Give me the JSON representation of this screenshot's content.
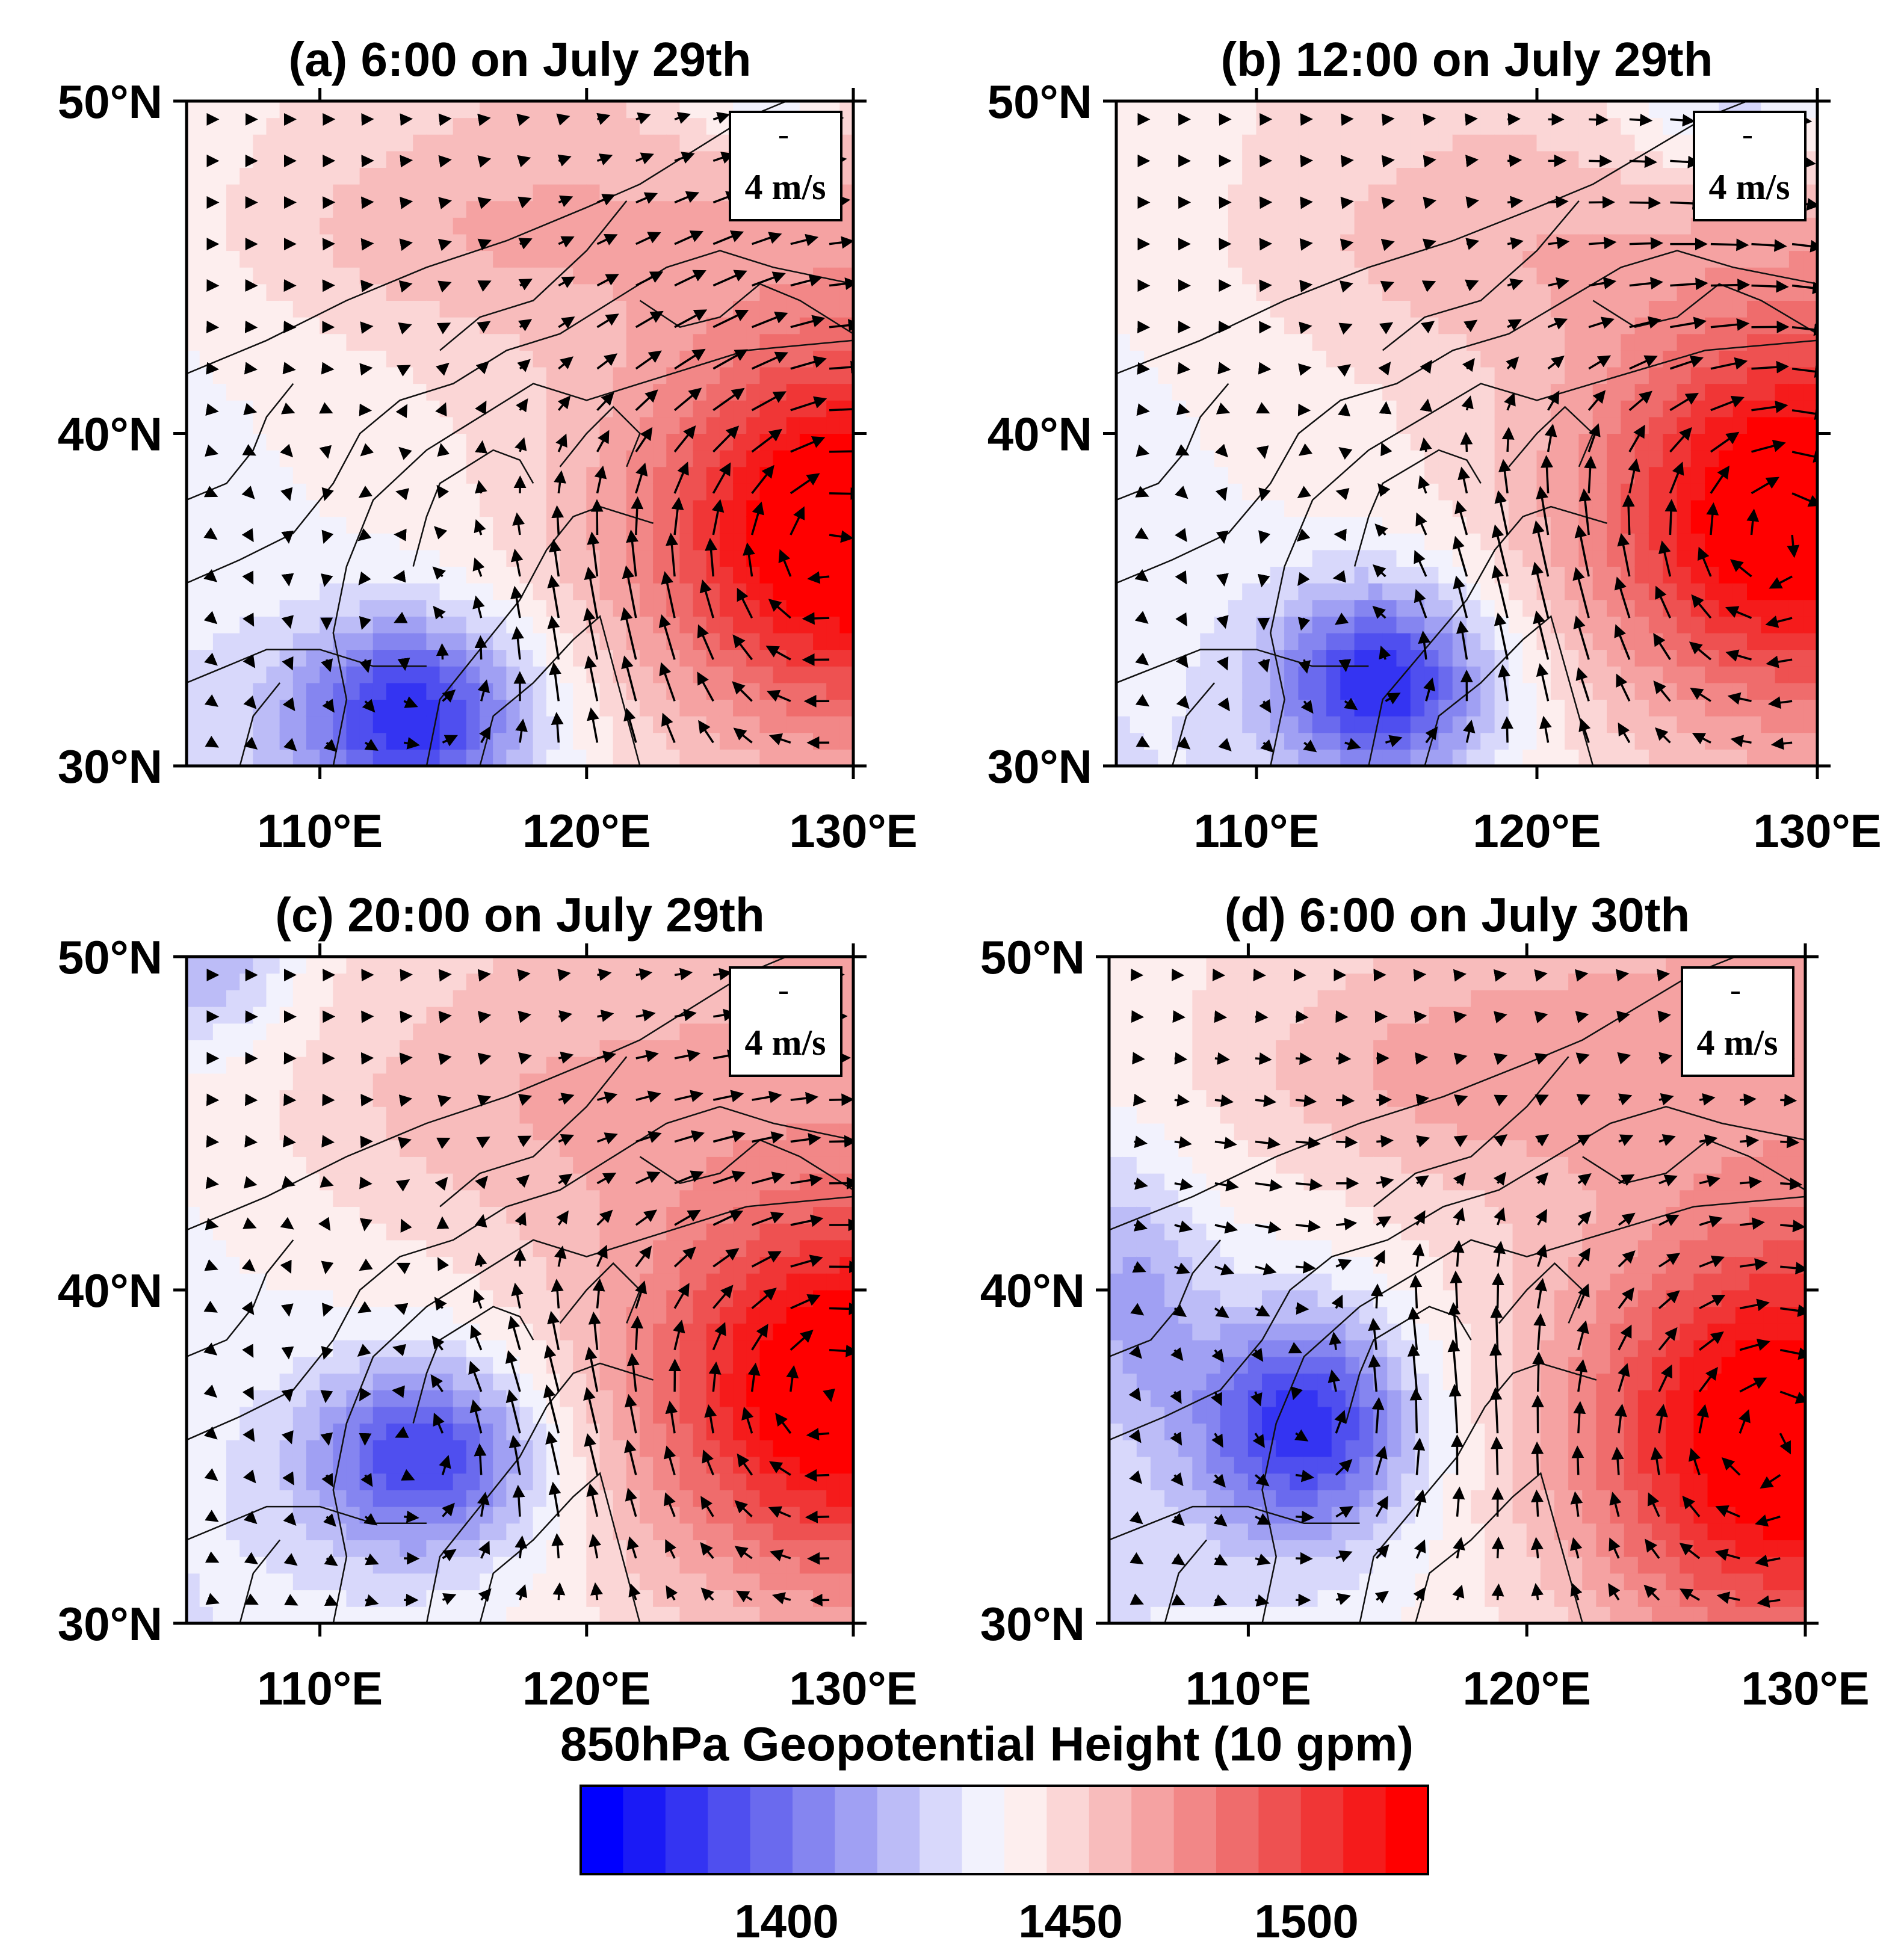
{
  "figure": {
    "colorbar_title": "850hPa Geopotential Height (10 gpm)",
    "colorbar_ticks": [
      {
        "value": 1400,
        "label": "1400"
      },
      {
        "value": 1450,
        "label": "1450"
      },
      {
        "value": 1500,
        "label": "1500"
      }
    ]
  },
  "chart_data": {
    "type": "heatmap",
    "description_variable": "850hPa geopotential height (10 gpm) with wind vectors",
    "colorbar": {
      "min": 1360,
      "max": 1520,
      "levels": 20,
      "colors": [
        "#0000ff",
        "#1a1af6",
        "#3434f2",
        "#4f4fef",
        "#6a6aee",
        "#8585f0",
        "#a0a0f3",
        "#bcbcf7",
        "#d8d8fb",
        "#f2f2fd",
        "#fdeeee",
        "#fbd6d6",
        "#f8bcbc",
        "#f5a2a2",
        "#f28787",
        "#ef6c6c",
        "#ee5151",
        "#f03636",
        "#f51b1b",
        "#ff0000"
      ],
      "ticks": [
        1400,
        1450,
        1500
      ]
    },
    "x_axis": {
      "range": [
        105,
        130
      ],
      "ticks": [
        110,
        120,
        130
      ],
      "tick_labels": [
        "110°E",
        "120°E",
        "130°E"
      ]
    },
    "y_axis": {
      "range": [
        30,
        50
      ],
      "ticks": [
        30,
        40,
        50
      ],
      "tick_labels": [
        "30°N",
        "40°N",
        "50°N"
      ]
    },
    "panels": [
      {
        "id": "a",
        "title": "(a) 6:00 on July 29th",
        "reference_vector": {
          "label": "4 m/s",
          "speed": 4
        },
        "height_features": [
          {
            "kind": "high",
            "lon": 129.5,
            "lat": 37.0,
            "value": 1520,
            "spread_lon": 7.5,
            "spread_lat": 5.5
          },
          {
            "kind": "high",
            "lon": 115.0,
            "lat": 46.0,
            "value": 1462,
            "spread_lon": 9.0,
            "spread_lat": 3.0
          },
          {
            "kind": "low",
            "lon": 113.5,
            "lat": 31.5,
            "value": 1386,
            "spread_lon": 4.5,
            "spread_lat": 3.0
          },
          {
            "kind": "low",
            "lon": 127.0,
            "lat": 50.5,
            "value": 1418,
            "spread_lon": 4.0,
            "spread_lat": 2.0
          }
        ],
        "wind_features": [
          {
            "kind": "anticyclone",
            "lon": 129.0,
            "lat": 36.5,
            "strength": 0.95,
            "radius": 7.0
          },
          {
            "kind": "cyclone",
            "lon": 114.0,
            "lat": 33.0,
            "strength": 0.35,
            "radius": 5.0
          },
          {
            "kind": "jet",
            "lon": 121.0,
            "lat": 33.5,
            "u": -0.25,
            "v": 1.0,
            "strength": 1.0,
            "radius": 3.0
          },
          {
            "kind": "jet",
            "lon": 124.0,
            "lat": 44.0,
            "u": 1.0,
            "v": 0.45,
            "strength": 0.5,
            "radius": 4.0
          }
        ]
      },
      {
        "id": "b",
        "title": "(b) 12:00 on July 29th",
        "reference_vector": {
          "label": "4 m/s",
          "speed": 4
        },
        "height_features": [
          {
            "kind": "high",
            "lon": 129.0,
            "lat": 37.5,
            "value": 1520,
            "spread_lon": 7.0,
            "spread_lat": 5.5
          },
          {
            "kind": "high",
            "lon": 117.0,
            "lat": 45.5,
            "value": 1458,
            "spread_lon": 8.0,
            "spread_lat": 3.0
          },
          {
            "kind": "low",
            "lon": 114.5,
            "lat": 32.5,
            "value": 1384,
            "spread_lon": 4.0,
            "spread_lat": 3.0
          },
          {
            "kind": "low",
            "lon": 127.5,
            "lat": 50.0,
            "value": 1415,
            "spread_lon": 5.0,
            "spread_lat": 2.5
          }
        ],
        "wind_features": [
          {
            "kind": "anticyclone",
            "lon": 128.5,
            "lat": 37.0,
            "strength": 0.95,
            "radius": 7.0
          },
          {
            "kind": "cyclone",
            "lon": 114.5,
            "lat": 33.0,
            "strength": 0.4,
            "radius": 5.0
          },
          {
            "kind": "jet",
            "lon": 120.0,
            "lat": 35.0,
            "u": -0.3,
            "v": 1.0,
            "strength": 1.05,
            "radius": 3.0
          },
          {
            "kind": "jet",
            "lon": 125.0,
            "lat": 46.0,
            "u": 1.0,
            "v": -0.2,
            "strength": 0.6,
            "radius": 4.0
          }
        ]
      },
      {
        "id": "c",
        "title": "(c) 20:00 on July 29th",
        "reference_vector": {
          "label": "4 m/s",
          "speed": 4
        },
        "height_features": [
          {
            "kind": "high",
            "lon": 129.5,
            "lat": 37.0,
            "value": 1518,
            "spread_lon": 7.5,
            "spread_lat": 5.5
          },
          {
            "kind": "high",
            "lon": 117.0,
            "lat": 45.5,
            "value": 1460,
            "spread_lon": 9.0,
            "spread_lat": 3.5
          },
          {
            "kind": "low",
            "lon": 114.0,
            "lat": 35.0,
            "value": 1390,
            "spread_lon": 4.5,
            "spread_lat": 3.0
          },
          {
            "kind": "low",
            "lon": 106.0,
            "lat": 50.0,
            "value": 1420,
            "spread_lon": 3.0,
            "spread_lat": 2.5
          }
        ],
        "wind_features": [
          {
            "kind": "anticyclone",
            "lon": 129.0,
            "lat": 37.0,
            "strength": 0.85,
            "radius": 7.0
          },
          {
            "kind": "cyclone",
            "lon": 114.0,
            "lat": 35.0,
            "strength": 0.35,
            "radius": 5.0
          },
          {
            "kind": "jet",
            "lon": 119.0,
            "lat": 36.0,
            "u": -0.4,
            "v": 1.0,
            "strength": 0.9,
            "radius": 3.0
          },
          {
            "kind": "jet",
            "lon": 124.0,
            "lat": 45.0,
            "u": 1.0,
            "v": 0.1,
            "strength": 0.45,
            "radius": 4.0
          }
        ]
      },
      {
        "id": "d",
        "title": "(d) 6:00 on July 30th",
        "reference_vector": {
          "label": "4 m/s",
          "speed": 4
        },
        "height_features": [
          {
            "kind": "high",
            "lon": 129.0,
            "lat": 35.5,
            "value": 1520,
            "spread_lon": 7.0,
            "spread_lat": 6.0
          },
          {
            "kind": "high",
            "lon": 118.0,
            "lat": 46.5,
            "value": 1465,
            "spread_lon": 9.0,
            "spread_lat": 3.0
          },
          {
            "kind": "low",
            "lon": 112.0,
            "lat": 36.0,
            "value": 1385,
            "spread_lon": 4.0,
            "spread_lat": 3.5
          },
          {
            "kind": "low",
            "lon": 106.0,
            "lat": 40.0,
            "value": 1425,
            "spread_lon": 2.5,
            "spread_lat": 4.0
          }
        ],
        "wind_features": [
          {
            "kind": "anticyclone",
            "lon": 128.5,
            "lat": 35.5,
            "strength": 0.9,
            "radius": 7.0
          },
          {
            "kind": "cyclone",
            "lon": 112.5,
            "lat": 36.0,
            "strength": 0.45,
            "radius": 5.0
          },
          {
            "kind": "jet",
            "lon": 117.5,
            "lat": 37.0,
            "u": -0.2,
            "v": 1.0,
            "strength": 1.0,
            "radius": 3.0
          },
          {
            "kind": "jet",
            "lon": 111.0,
            "lat": 42.5,
            "u": 1.0,
            "v": -0.1,
            "strength": 0.7,
            "radius": 3.5
          }
        ]
      }
    ]
  }
}
